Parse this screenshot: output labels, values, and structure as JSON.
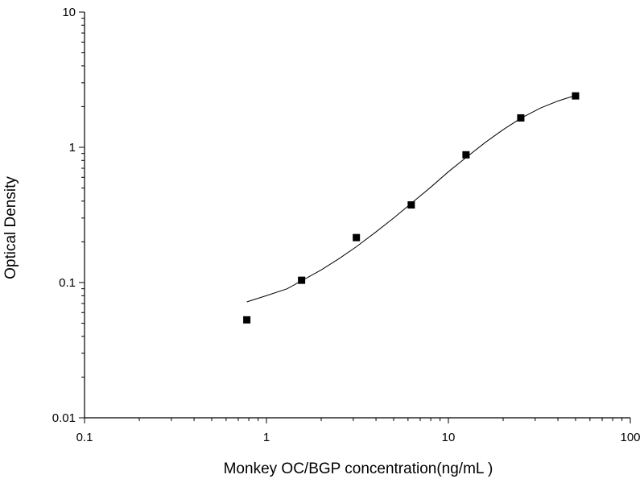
{
  "chart_data": {
    "type": "scatter",
    "title": "",
    "xlabel": "Monkey OC/BGP concentration(ng/mL )",
    "ylabel": "Optical Density",
    "x_scale": "log",
    "y_scale": "log",
    "xlim": [
      0.1,
      100
    ],
    "ylim": [
      0.01,
      10
    ],
    "x_ticks": [
      {
        "value": 0.1,
        "label": "0.1"
      },
      {
        "value": 1,
        "label": "1"
      },
      {
        "value": 10,
        "label": "10"
      },
      {
        "value": 100,
        "label": "100"
      }
    ],
    "y_ticks": [
      {
        "value": 0.01,
        "label": "0.01"
      },
      {
        "value": 0.1,
        "label": "0.1"
      },
      {
        "value": 1,
        "label": "1"
      },
      {
        "value": 10,
        "label": "10"
      }
    ],
    "grid": false,
    "legend": "none",
    "series": [
      {
        "marker": "square",
        "color": "#000000",
        "x": [
          0.78,
          1.56,
          3.12,
          6.25,
          12.5,
          25,
          50
        ],
        "y": [
          0.053,
          0.104,
          0.215,
          0.375,
          0.88,
          1.65,
          2.4
        ]
      }
    ],
    "fit_curve": {
      "color": "#000000",
      "x": [
        0.78,
        1.0,
        1.3,
        1.56,
        2.0,
        2.5,
        3.12,
        4.0,
        5.0,
        6.25,
        8.0,
        10.0,
        12.5,
        16.0,
        20.0,
        25.0,
        32.0,
        40.0,
        50.0
      ],
      "y": [
        0.072,
        0.08,
        0.09,
        0.103,
        0.124,
        0.15,
        0.184,
        0.237,
        0.3,
        0.385,
        0.507,
        0.66,
        0.84,
        1.09,
        1.35,
        1.64,
        1.95,
        2.2,
        2.42
      ]
    }
  }
}
